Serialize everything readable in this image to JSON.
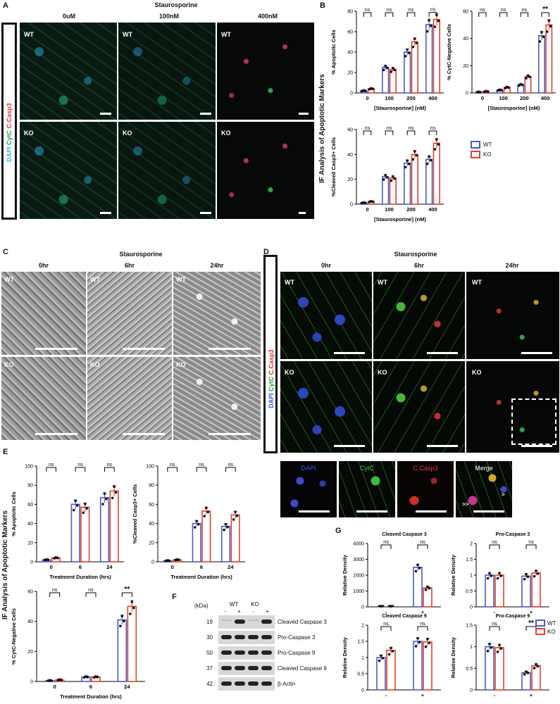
{
  "panel_a": {
    "letter": "A",
    "title": "Staurosporine",
    "side_label_parts": [
      "DAPI",
      "CytC",
      "C.Casp3"
    ],
    "columns": [
      "0uM",
      "100nM",
      "400nM"
    ],
    "rows": [
      "WT",
      "KO"
    ]
  },
  "panel_b": {
    "letter": "B",
    "side_label": "IF Analysis of Apoptotic Markers"
  },
  "panel_c": {
    "letter": "C",
    "title": "Staurosporine",
    "columns": [
      "0hr",
      "6hr",
      "24hr"
    ],
    "rows": [
      "WT",
      "KO"
    ]
  },
  "panel_d": {
    "letter": "D",
    "title": "Staurosporine",
    "columns": [
      "0hr",
      "6hr",
      "24hr"
    ],
    "rows": [
      "WT",
      "KO"
    ],
    "side_label_parts": [
      "DAPI",
      "CytC",
      "C.Casp3"
    ],
    "zoom_labels": [
      "DAPI",
      "CytC",
      "C.Casp3",
      "Merge"
    ],
    "arrows": [
      ">",
      ">>"
    ]
  },
  "panel_e": {
    "letter": "E",
    "side_label": "IF Analysis of Apoptotic Markers"
  },
  "panel_f": {
    "letter": "F",
    "kda_label": "(kDa)",
    "lane_groups": [
      "WT",
      "KO"
    ],
    "lane_signs": [
      "-",
      "+",
      "-",
      "+"
    ],
    "rows": [
      {
        "kda": "19",
        "name": "Cleaved Caspase 3"
      },
      {
        "kda": "30",
        "name": "Pro-Caspase 3"
      },
      {
        "kda": "50",
        "name": "Pro-Caspase 9"
      },
      {
        "kda": "37",
        "name": "Cleaved Caspase 9"
      },
      {
        "kda": "42",
        "name": "β-Actin"
      }
    ]
  },
  "panel_g": {
    "letter": "G"
  },
  "colors": {
    "wt": "#4a5cc4",
    "ko": "#e0402d"
  },
  "legend": {
    "wt": "WT",
    "ko": "KO"
  },
  "chart_data": [
    {
      "id": "b1",
      "type": "bar",
      "ylabel": "% Apoptotic Cells",
      "xlabel": "[Staurosporine] (nM)",
      "categories": [
        "0",
        "100",
        "200",
        "400"
      ],
      "ylim": [
        0,
        80
      ],
      "yticks": [
        0,
        20,
        40,
        60,
        80
      ],
      "series": [
        {
          "name": "WT",
          "values": [
            2,
            25,
            40,
            67
          ]
        },
        {
          "name": "KO",
          "values": [
            4,
            23,
            50,
            72
          ]
        }
      ],
      "annotations": [
        "ns",
        "ns",
        "ns",
        "ns"
      ]
    },
    {
      "id": "b2",
      "type": "bar",
      "ylabel": "% CytC-Negative Cells",
      "xlabel": "[Staurosporine] (nM)",
      "categories": [
        "0",
        "100",
        "200",
        "400"
      ],
      "ylim": [
        0,
        60
      ],
      "yticks": [
        0,
        20,
        40,
        60
      ],
      "series": [
        {
          "name": "WT",
          "values": [
            0.5,
            2,
            6,
            42
          ]
        },
        {
          "name": "KO",
          "values": [
            1,
            4,
            12,
            50
          ]
        }
      ],
      "annotations": [
        "ns",
        "ns",
        "ns",
        "**"
      ]
    },
    {
      "id": "b3",
      "type": "bar",
      "ylabel": "%Cleaved Casp3+ Cells",
      "xlabel": "[Staurosporine] (nM)",
      "categories": [
        "0",
        "100",
        "200",
        "400"
      ],
      "ylim": [
        0,
        60
      ],
      "yticks": [
        0,
        20,
        40,
        60
      ],
      "series": [
        {
          "name": "WT",
          "values": [
            1,
            22,
            33,
            36
          ]
        },
        {
          "name": "KO",
          "values": [
            2,
            21,
            40,
            49
          ]
        }
      ],
      "annotations": [
        "ns",
        "ns",
        "ns",
        "ns"
      ]
    },
    {
      "id": "e1",
      "type": "bar",
      "ylabel": "% Apoptotic Cells",
      "xlabel": "Treatment Duration (hrs)",
      "categories": [
        "0",
        "6",
        "24"
      ],
      "ylim": [
        0,
        100
      ],
      "yticks": [
        0,
        20,
        40,
        60,
        80,
        100
      ],
      "series": [
        {
          "name": "WT",
          "values": [
            2,
            60,
            67
          ]
        },
        {
          "name": "KO",
          "values": [
            4,
            57,
            74
          ]
        }
      ],
      "annotations": [
        "ns",
        "ns",
        "ns"
      ]
    },
    {
      "id": "e2",
      "type": "bar",
      "ylabel": "%Cleaved Casp3+ Cells",
      "xlabel": "Treatment Duration (hrs)",
      "categories": [
        "0",
        "6",
        "24"
      ],
      "ylim": [
        0,
        100
      ],
      "yticks": [
        0,
        20,
        40,
        60,
        80,
        100
      ],
      "series": [
        {
          "name": "WT",
          "values": [
            1,
            40,
            37
          ]
        },
        {
          "name": "KO",
          "values": [
            2,
            53,
            49
          ]
        }
      ],
      "annotations": [
        "ns",
        "ns",
        "ns"
      ]
    },
    {
      "id": "e3",
      "type": "bar",
      "ylabel": "% CytC-Negative Cells",
      "xlabel": "Treatment Duration (hrs)",
      "categories": [
        "0",
        "6",
        "24"
      ],
      "ylim": [
        0,
        60
      ],
      "yticks": [
        0,
        20,
        40,
        60
      ],
      "series": [
        {
          "name": "WT",
          "values": [
            0.5,
            3,
            41
          ]
        },
        {
          "name": "KO",
          "values": [
            1,
            3,
            50
          ]
        }
      ],
      "annotations": [
        "ns",
        "ns",
        "**"
      ]
    },
    {
      "id": "g1",
      "type": "bar",
      "title": "Cleaved Caspase 3",
      "ylabel": "Relative Density",
      "categories": [
        "-",
        "+"
      ],
      "ylim": [
        0,
        4000
      ],
      "yticks": [
        0,
        1000,
        2000,
        3000,
        4000
      ],
      "series": [
        {
          "name": "WT",
          "values": [
            0,
            2500
          ]
        },
        {
          "name": "KO",
          "values": [
            0,
            1200
          ]
        }
      ],
      "annotations": [
        "ns",
        "ns"
      ]
    },
    {
      "id": "g2",
      "type": "bar",
      "title": "Pro-Caspase 3",
      "ylabel": "Relative Density",
      "categories": [
        "-",
        "+"
      ],
      "ylim": [
        0,
        2.0
      ],
      "yticks": [
        0.0,
        0.5,
        1.0,
        1.5,
        2.0
      ],
      "series": [
        {
          "name": "WT",
          "values": [
            1.0,
            0.97
          ]
        },
        {
          "name": "KO",
          "values": [
            1.0,
            1.07
          ]
        }
      ],
      "annotations": [
        "ns",
        "ns"
      ]
    },
    {
      "id": "g3",
      "type": "bar",
      "title": "Cleaved Caspase 9",
      "ylabel": "Relative Density",
      "categories": [
        "-",
        "+"
      ],
      "ylim": [
        0,
        2.0
      ],
      "yticks": [
        0.0,
        0.5,
        1.0,
        1.5,
        2.0
      ],
      "series": [
        {
          "name": "WT",
          "values": [
            1.0,
            1.5
          ]
        },
        {
          "name": "KO",
          "values": [
            1.22,
            1.48
          ]
        }
      ],
      "annotations": [
        "ns",
        "ns"
      ]
    },
    {
      "id": "g4",
      "type": "bar",
      "title": "Pro-Caspase 9",
      "ylabel": "Relative Density",
      "categories": [
        "-",
        "+"
      ],
      "ylim": [
        0,
        1.5
      ],
      "yticks": [
        0.0,
        0.5,
        1.0,
        1.5
      ],
      "series": [
        {
          "name": "WT",
          "values": [
            1.0,
            0.4
          ]
        },
        {
          "name": "KO",
          "values": [
            0.98,
            0.56
          ]
        }
      ],
      "annotations": [
        "ns",
        "**"
      ]
    }
  ]
}
